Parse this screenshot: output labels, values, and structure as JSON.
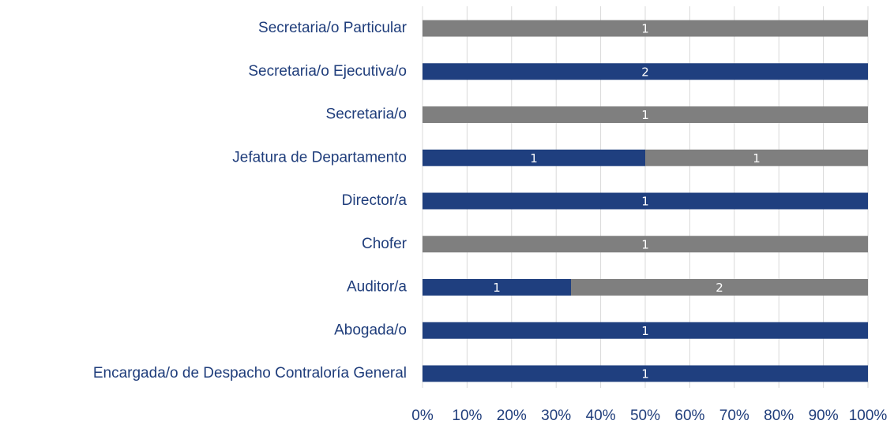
{
  "chart_data": {
    "type": "bar",
    "orientation": "horizontal",
    "stack": "percent",
    "categories": [
      "Secretaria/o Particular",
      "Secretaria/o Ejecutiva/o",
      "Secretaria/o",
      "Jefatura de Departamento",
      "Director/a",
      "Chofer",
      "Auditor/a",
      "Abogada/o",
      "Encargada/o de Despacho Contraloría General"
    ],
    "series": [
      {
        "color": "#1f3f7f",
        "values": [
          0,
          2,
          0,
          1,
          1,
          0,
          1,
          1,
          1
        ]
      },
      {
        "color": "#7f7f7f",
        "values": [
          1,
          0,
          1,
          1,
          0,
          1,
          2,
          0,
          0
        ]
      }
    ],
    "xlim": [
      0,
      100
    ],
    "xticks": [
      {
        "value": 0,
        "label": "0%"
      },
      {
        "value": 10,
        "label": "10%"
      },
      {
        "value": 20,
        "label": "20%"
      },
      {
        "value": 30,
        "label": "30%"
      },
      {
        "value": 40,
        "label": "40%"
      },
      {
        "value": 50,
        "label": "50%"
      },
      {
        "value": 60,
        "label": "60%"
      },
      {
        "value": 70,
        "label": "70%"
      },
      {
        "value": 80,
        "label": "80%"
      },
      {
        "value": 90,
        "label": "90%"
      },
      {
        "value": 100,
        "label": "100%"
      }
    ],
    "grid": true
  }
}
